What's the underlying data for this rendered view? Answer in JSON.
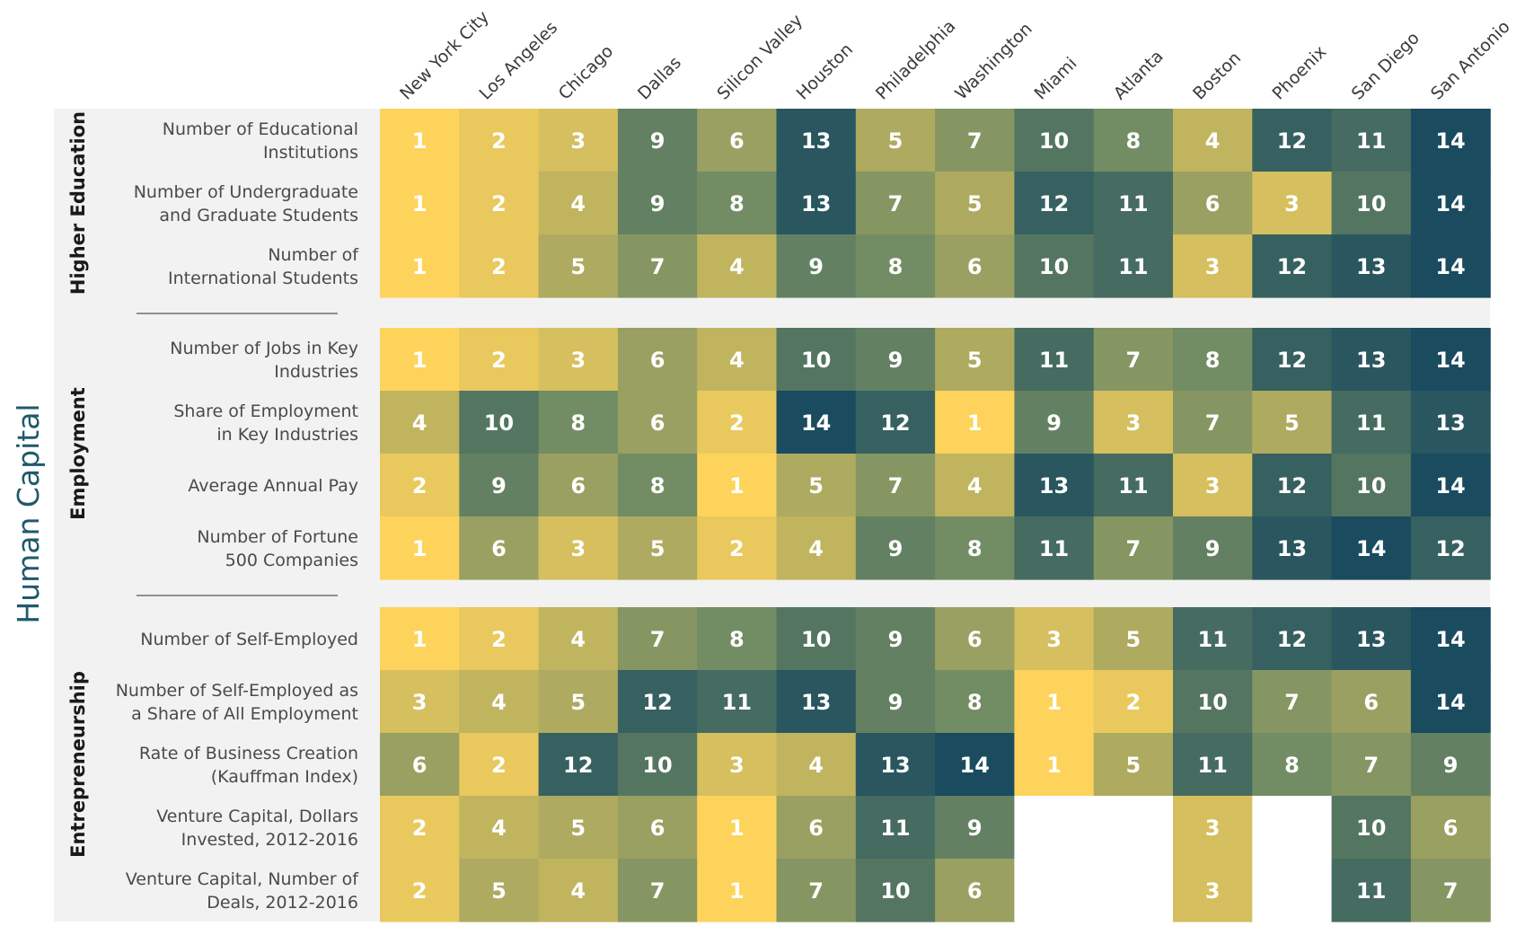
{
  "chart_data": {
    "type": "heatmap",
    "title": "Human Capital",
    "cities": [
      "New York City",
      "Los Angeles",
      "Chicago",
      "Dallas",
      "Silicon Valley",
      "Houston",
      "Philadelphia",
      "Washington",
      "Miami",
      "Atlanta",
      "Boston",
      "Phoenix",
      "San Diego",
      "San Antonio"
    ],
    "color_scale": {
      "low": "#fdd35c",
      "mid": "#6f8a63",
      "high": "#1a4b5e",
      "min": 1,
      "max": 14
    },
    "groups": [
      {
        "name": "Higher Education",
        "rows": [
          {
            "label": [
              "Number of Educational",
              "Institutions"
            ],
            "values": [
              1,
              2,
              3,
              9,
              6,
              13,
              5,
              7,
              10,
              8,
              4,
              12,
              11,
              14
            ]
          },
          {
            "label": [
              "Number of Undergraduate",
              "and Graduate Students"
            ],
            "values": [
              1,
              2,
              4,
              9,
              8,
              13,
              7,
              5,
              12,
              11,
              6,
              3,
              10,
              14
            ]
          },
          {
            "label": [
              "Number of",
              "International Students"
            ],
            "values": [
              1,
              2,
              5,
              7,
              4,
              9,
              8,
              6,
              10,
              11,
              3,
              12,
              13,
              14
            ]
          }
        ]
      },
      {
        "name": "Employment",
        "rows": [
          {
            "label": [
              "Number of Jobs in Key",
              "Industries"
            ],
            "values": [
              1,
              2,
              3,
              6,
              4,
              10,
              9,
              5,
              11,
              7,
              8,
              12,
              13,
              14
            ]
          },
          {
            "label": [
              "Share of Employment",
              "in Key Industries"
            ],
            "values": [
              4,
              10,
              8,
              6,
              2,
              14,
              12,
              1,
              9,
              3,
              7,
              5,
              11,
              13
            ]
          },
          {
            "label": [
              "Average Annual Pay"
            ],
            "values": [
              2,
              9,
              6,
              8,
              1,
              5,
              7,
              4,
              13,
              11,
              3,
              12,
              10,
              14
            ]
          },
          {
            "label": [
              "Number of Fortune",
              "500 Companies"
            ],
            "values": [
              1,
              6,
              3,
              5,
              2,
              4,
              9,
              8,
              11,
              7,
              9,
              13,
              14,
              12
            ]
          }
        ]
      },
      {
        "name": "Entrepreneurship",
        "rows": [
          {
            "label": [
              "Number of Self-Employed"
            ],
            "values": [
              1,
              2,
              4,
              7,
              8,
              10,
              9,
              6,
              3,
              5,
              11,
              12,
              13,
              14
            ]
          },
          {
            "label": [
              "Number of Self-Employed as",
              "a Share of All Employment"
            ],
            "values": [
              3,
              4,
              5,
              12,
              11,
              13,
              9,
              8,
              1,
              2,
              10,
              7,
              6,
              14
            ]
          },
          {
            "label": [
              "Rate of Business Creation",
              "(Kauffman Index)"
            ],
            "values": [
              6,
              2,
              12,
              10,
              3,
              4,
              13,
              14,
              1,
              5,
              11,
              8,
              7,
              9
            ]
          },
          {
            "label": [
              "Venture Capital, Dollars",
              "Invested, 2012-2016"
            ],
            "values": [
              2,
              4,
              5,
              6,
              1,
              6,
              11,
              9,
              null,
              null,
              3,
              null,
              10,
              6
            ]
          },
          {
            "label": [
              "Venture Capital, Number of",
              "Deals, 2012-2016"
            ],
            "values": [
              2,
              5,
              4,
              7,
              1,
              7,
              10,
              6,
              null,
              null,
              3,
              null,
              11,
              7
            ]
          }
        ]
      }
    ]
  }
}
